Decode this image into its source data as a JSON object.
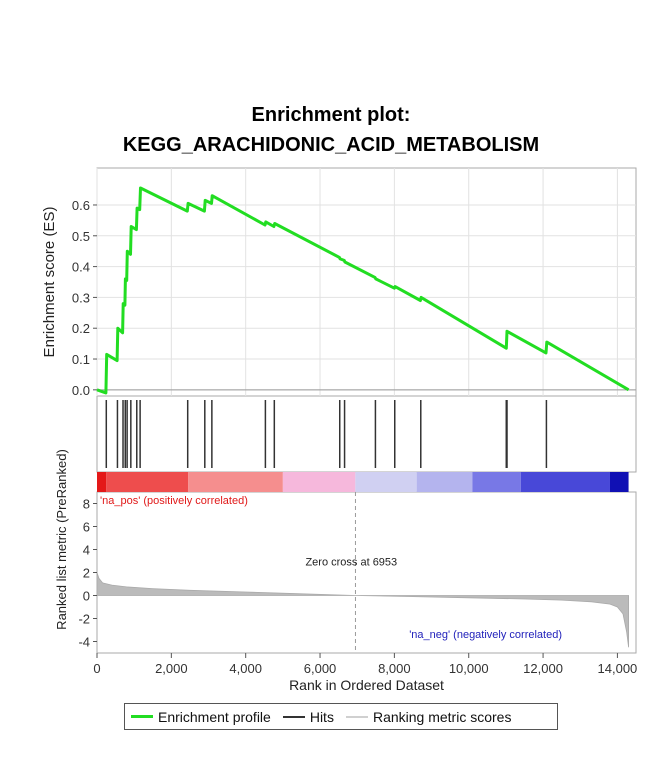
{
  "chart_data": {
    "type": "line",
    "title": "Enrichment plot:",
    "subtitle": "KEGG_ARACHIDONIC_ACID_METABOLISM",
    "xlabel": "Rank in Ordered Dataset",
    "xlim": [
      0,
      14500
    ],
    "x_ticks": [
      0,
      2000,
      4000,
      6000,
      8000,
      10000,
      12000,
      14000
    ],
    "x_tick_labels": [
      "0",
      "2,000",
      "4,000",
      "6,000",
      "8,000",
      "10,000",
      "12,000",
      "14,000"
    ],
    "es_panel": {
      "ylabel": "Enrichment score (ES)",
      "ylim": [
        -0.02,
        0.72
      ],
      "y_ticks": [
        0.0,
        0.1,
        0.2,
        0.3,
        0.4,
        0.5,
        0.6
      ],
      "y_tick_labels": [
        "0.0",
        "0.1",
        "0.2",
        "0.3",
        "0.4",
        "0.5",
        "0.6"
      ],
      "grid": true,
      "series": [
        {
          "name": "Enrichment profile",
          "color": "#22dd22",
          "x": [
            0,
            240,
            260,
            540,
            560,
            690,
            705,
            750,
            765,
            800,
            815,
            900,
            920,
            1060,
            1080,
            1150,
            1170,
            2430,
            2450,
            2890,
            2910,
            3080,
            3100,
            4520,
            4540,
            4760,
            4780,
            6520,
            6540,
            6650,
            6670,
            7480,
            7500,
            8000,
            8020,
            8700,
            8720,
            11010,
            11030,
            12080,
            12100,
            14300
          ],
          "y": [
            0.0,
            -0.01,
            0.115,
            0.095,
            0.2,
            0.185,
            0.28,
            0.275,
            0.36,
            0.355,
            0.45,
            0.44,
            0.53,
            0.52,
            0.59,
            0.585,
            0.655,
            0.58,
            0.605,
            0.58,
            0.615,
            0.605,
            0.63,
            0.535,
            0.545,
            0.53,
            0.54,
            0.43,
            0.425,
            0.42,
            0.415,
            0.365,
            0.36,
            0.33,
            0.335,
            0.29,
            0.3,
            0.135,
            0.19,
            0.12,
            0.155,
            0.0
          ]
        }
      ]
    },
    "hits": {
      "name": "Hits",
      "color": "#333333",
      "positions": [
        250,
        550,
        700,
        760,
        810,
        910,
        1070,
        1160,
        2440,
        2900,
        3090,
        4530,
        4770,
        6530,
        6660,
        7490,
        8010,
        8710,
        11010,
        11030,
        12090
      ]
    },
    "ranked_metric_panel": {
      "name": "Ranking metric scores",
      "ylabel": "Ranked list metric (PreRanked)",
      "ylim": [
        -5,
        9
      ],
      "y_ticks": [
        -4,
        -2,
        0,
        2,
        4,
        6,
        8
      ],
      "y_tick_labels": [
        "-4",
        "-2",
        "0",
        "2",
        "4",
        "6",
        "8"
      ],
      "fill_color": "#bbbbbb",
      "x": [
        0,
        50,
        150,
        400,
        800,
        1500,
        2500,
        4000,
        5500,
        6953,
        8500,
        10000,
        11500,
        12500,
        13300,
        13800,
        14000,
        14150,
        14250,
        14300
      ],
      "y": [
        2.0,
        1.5,
        1.1,
        0.9,
        0.75,
        0.6,
        0.45,
        0.3,
        0.15,
        0.0,
        -0.1,
        -0.2,
        -0.3,
        -0.4,
        -0.55,
        -0.75,
        -1.0,
        -1.6,
        -3.2,
        -4.5
      ],
      "zero_cross_label": "Zero cross at 6953",
      "zero_cross_x": 6953,
      "pos_label": "'na_pos' (positively correlated)",
      "neg_label": "'na_neg' (negatively correlated)",
      "pos_color": "#e01818",
      "neg_color": "#2222bb"
    },
    "color_bar": {
      "segments": [
        {
          "from": 0,
          "to": 250,
          "color": "#e41818"
        },
        {
          "from": 250,
          "to": 2450,
          "color": "#ee4d4d"
        },
        {
          "from": 2450,
          "to": 5000,
          "color": "#f58e8e"
        },
        {
          "from": 5000,
          "to": 6950,
          "color": "#f6b8dc"
        },
        {
          "from": 6950,
          "to": 8600,
          "color": "#d0d0f2"
        },
        {
          "from": 8600,
          "to": 10100,
          "color": "#b4b4ee"
        },
        {
          "from": 10100,
          "to": 11400,
          "color": "#7878e6"
        },
        {
          "from": 11400,
          "to": 13800,
          "color": "#4848d8"
        },
        {
          "from": 13800,
          "to": 14300,
          "color": "#1010b4"
        }
      ]
    },
    "legend": {
      "placement": "bottom",
      "items": [
        {
          "name": "Enrichment profile",
          "color": "#22dd22"
        },
        {
          "name": "Hits",
          "color": "#333333"
        },
        {
          "name": "Ranking metric scores",
          "color": "#cccccc"
        }
      ]
    }
  }
}
